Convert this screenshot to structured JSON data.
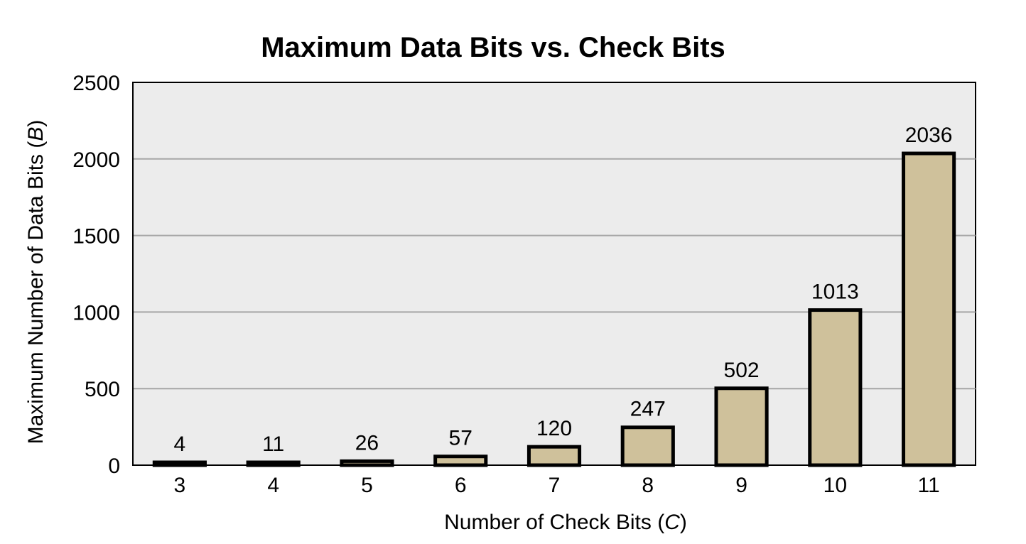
{
  "chart_data": {
    "type": "bar",
    "title": "Maximum Data Bits vs. Check Bits",
    "xlabel": "Number of Check Bits",
    "xlabel_var": "C",
    "ylabel": "Maximum Number of Data Bits",
    "ylabel_var": "B",
    "categories": [
      "3",
      "4",
      "5",
      "6",
      "7",
      "8",
      "9",
      "10",
      "11"
    ],
    "values": [
      4,
      11,
      26,
      57,
      120,
      247,
      502,
      1013,
      2036
    ],
    "data_labels": [
      "4",
      "11",
      "26",
      "57",
      "120",
      "247",
      "502",
      "1013",
      "2036"
    ],
    "ylim": [
      0,
      2500
    ],
    "yticks": [
      0,
      500,
      1000,
      1500,
      2000,
      2500
    ],
    "ytick_labels": [
      "0",
      "500",
      "1000",
      "1500",
      "2000",
      "2500"
    ],
    "grid": true,
    "legend": "none",
    "colors": {
      "plot_background": "#ececec",
      "bar_fill": "#cfc19b",
      "bar_stroke": "#000000",
      "gridline": "#a6a6a6",
      "axis": "#000000"
    }
  }
}
